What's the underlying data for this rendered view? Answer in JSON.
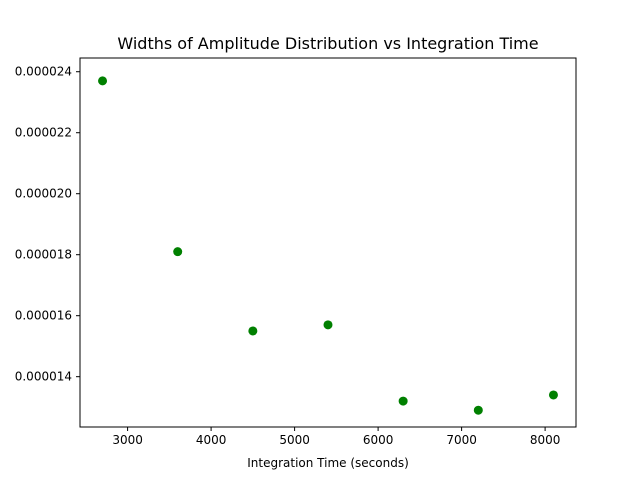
{
  "chart_data": {
    "type": "scatter",
    "title": "Widths of Amplitude Distribution vs Integration Time",
    "xlabel": "Integration Time (seconds)",
    "ylabel": "",
    "x": [
      2700,
      3600,
      4500,
      5400,
      6300,
      7200,
      8100
    ],
    "y": [
      2.37e-05,
      1.81e-05,
      1.55e-05,
      1.57e-05,
      1.32e-05,
      1.29e-05,
      1.34e-05
    ],
    "xlim": [
      2430,
      8370
    ],
    "ylim": [
      1.235e-05,
      2.445e-05
    ],
    "xticks": [
      3000,
      4000,
      5000,
      6000,
      7000,
      8000
    ],
    "xtick_labels": [
      "3000",
      "4000",
      "5000",
      "6000",
      "7000",
      "8000"
    ],
    "yticks": [
      1.4e-05,
      1.6e-05,
      1.8e-05,
      2e-05,
      2.2e-05,
      2.4e-05
    ],
    "ytick_labels": [
      "0.000014",
      "0.000016",
      "0.000018",
      "0.000020",
      "0.000022",
      "0.000024"
    ],
    "marker_color": "#008000",
    "grid": false,
    "legend": false
  }
}
